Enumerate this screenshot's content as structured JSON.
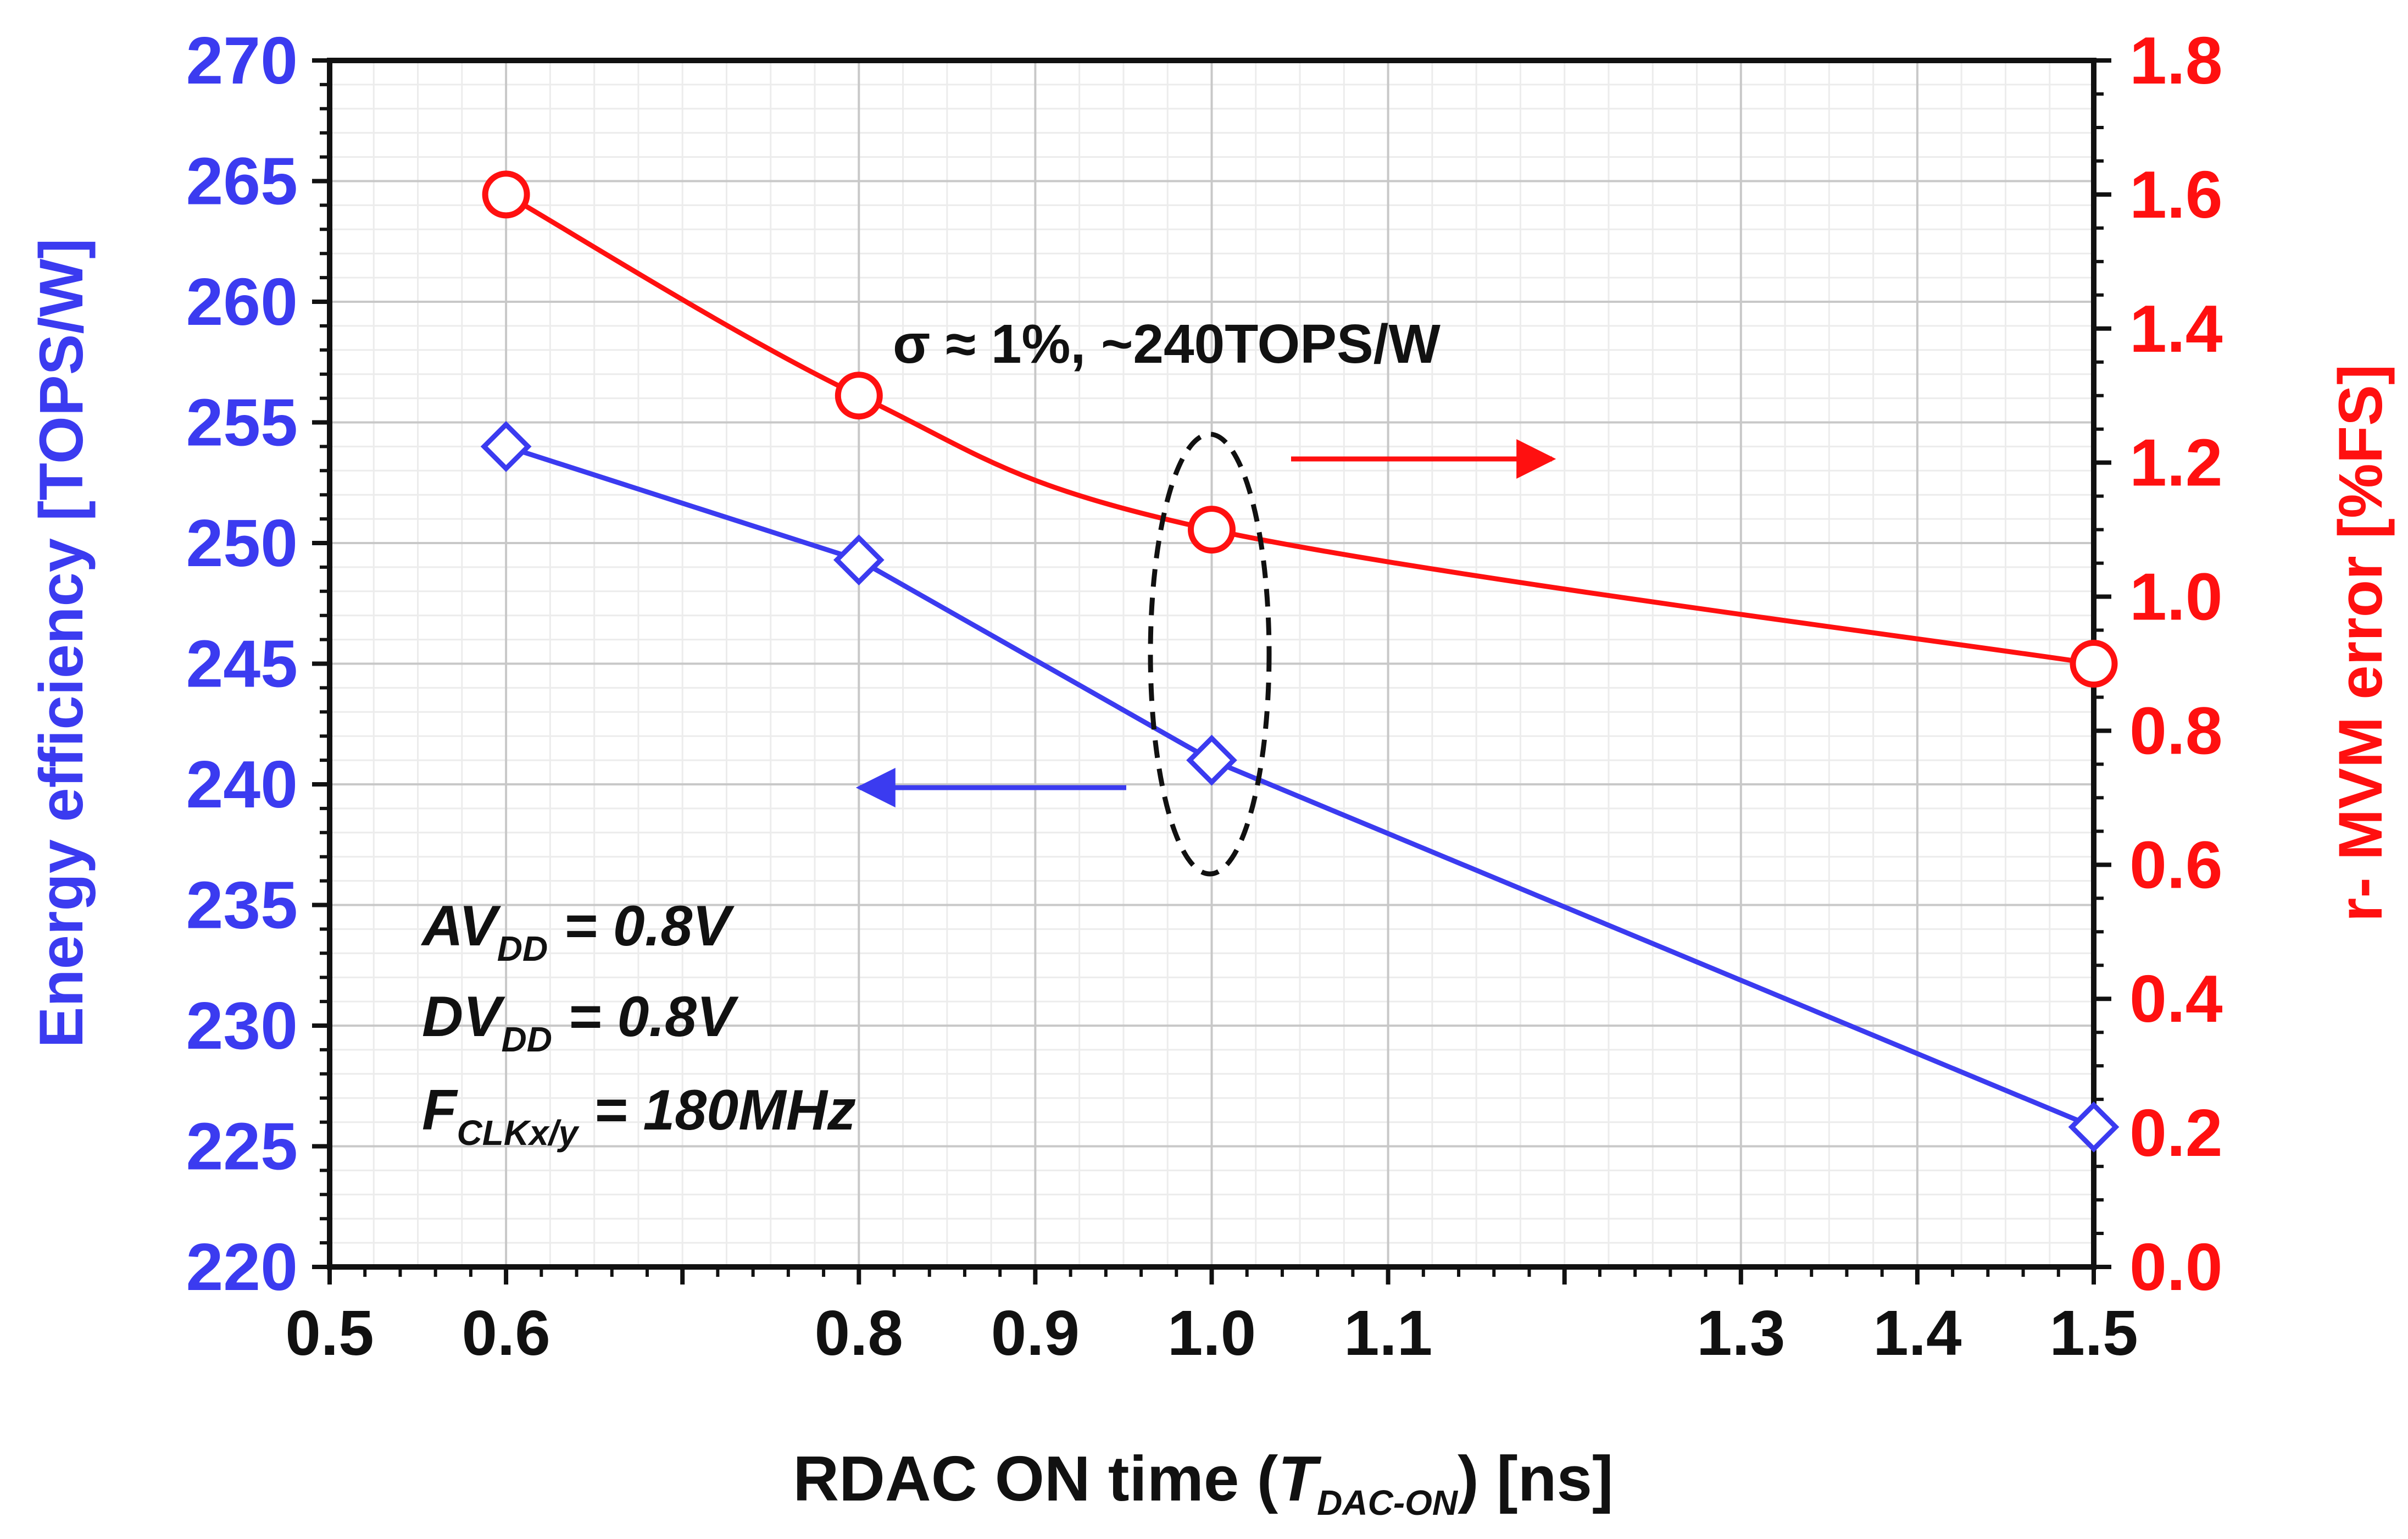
{
  "chart_data": {
    "type": "line",
    "x_range": [
      0.5,
      1.5
    ],
    "x_ticks": [
      {
        "value": 0.5,
        "label": "0.5"
      },
      {
        "value": 0.6,
        "label": "0.6"
      },
      {
        "value": 0.8,
        "label": "0.8"
      },
      {
        "value": 0.9,
        "label": "0.9"
      },
      {
        "value": 1.0,
        "label": "1.0"
      },
      {
        "value": 1.1,
        "label": "1.1"
      },
      {
        "value": 1.3,
        "label": "1.3"
      },
      {
        "value": 1.4,
        "label": "1.4"
      },
      {
        "value": 1.5,
        "label": "1.5"
      }
    ],
    "x_label": {
      "prefix": "RDAC ON time (",
      "italic": "T",
      "sub": "DAC-ON",
      "suffix": ") [ns]"
    },
    "y_left": {
      "label": "Energy efficiency [TOPS/W]",
      "range": [
        220,
        270
      ],
      "ticks": [
        "220",
        "225",
        "230",
        "235",
        "240",
        "245",
        "250",
        "255",
        "260",
        "265",
        "270"
      ],
      "color": "#3b3bf0"
    },
    "y_right": {
      "label": "r- MVM error [%FS]",
      "range": [
        0.0,
        1.8
      ],
      "ticks": [
        "0.0",
        "0.2",
        "0.4",
        "0.6",
        "0.8",
        "1.0",
        "1.2",
        "1.4",
        "1.6",
        "1.8"
      ],
      "color": "#ff1010"
    },
    "series": [
      {
        "name": "Energy efficiency",
        "axis": "left",
        "color": "#3b3bf0",
        "marker": "diamond",
        "x": [
          0.6,
          0.8,
          1.0,
          1.5
        ],
        "y": [
          254,
          249.3,
          241,
          225.8
        ]
      },
      {
        "name": "r- MVM error",
        "axis": "right",
        "color": "#ff1010",
        "marker": "circle",
        "x": [
          0.6,
          0.8,
          1.0,
          1.5
        ],
        "y": [
          1.6,
          1.3,
          1.1,
          0.9
        ]
      }
    ],
    "annotation": "σ ≈ 1%, ~240TOPS/W",
    "conditions": [
      {
        "main": "AV",
        "sub": "DD",
        "rest": " = 0.8V"
      },
      {
        "main": "DV",
        "sub": "DD",
        "rest": " = 0.8V"
      },
      {
        "main": "F",
        "sub": "CLKx/y",
        "rest": " = 180MHz"
      }
    ],
    "grid": true
  }
}
